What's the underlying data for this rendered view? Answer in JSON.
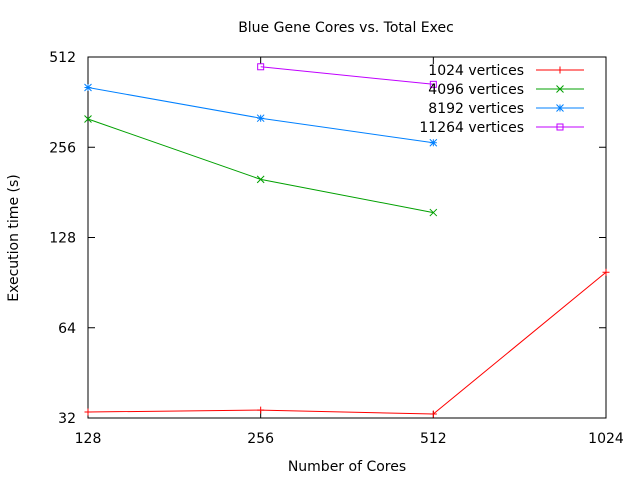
{
  "chart_data": {
    "type": "line",
    "title": "Blue Gene Cores vs. Total Exec",
    "xlabel": "Number of Cores",
    "ylabel": "Execution time (s)",
    "x_scale": "log2",
    "y_scale": "log2",
    "xlim": [
      128,
      1024
    ],
    "ylim": [
      32,
      512
    ],
    "x_ticks": [
      128,
      256,
      512,
      1024
    ],
    "y_ticks": [
      32,
      64,
      128,
      256,
      512
    ],
    "legend_position": "top-right",
    "grid": false,
    "series": [
      {
        "name": "1024 vertices",
        "color": "#ff0000",
        "marker": "plus",
        "x": [
          128,
          256,
          512,
          1024
        ],
        "y": [
          33.5,
          34,
          33,
          98
        ]
      },
      {
        "name": "4096 vertices",
        "color": "#00a000",
        "marker": "cross",
        "x": [
          128,
          256,
          512
        ],
        "y": [
          318,
          200,
          155
        ]
      },
      {
        "name": "8192 vertices",
        "color": "#0080ff",
        "marker": "star",
        "x": [
          128,
          256,
          512
        ],
        "y": [
          405,
          320,
          265
        ]
      },
      {
        "name": "11264 vertices",
        "color": "#c000ff",
        "marker": "square",
        "x": [
          256,
          512
        ],
        "y": [
          475,
          415
        ]
      }
    ]
  }
}
